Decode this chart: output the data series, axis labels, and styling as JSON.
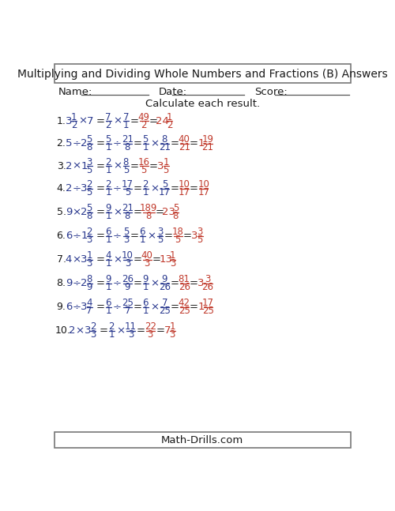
{
  "title": "Multiplying and Dividing Whole Numbers and Fractions (B) Answers",
  "subtitle": "Calculate each result.",
  "name_label": "Name:",
  "date_label": "Date:",
  "score_label": "Score:",
  "footer": "Math-Drills.com",
  "bg_color": "#ffffff",
  "black_color": "#1a1a1a",
  "blue_color": "#2b3a8f",
  "red_color": "#c0392b",
  "problems": [
    {
      "num": "1.",
      "q_whole1": "3",
      "q_frac_num": "1",
      "q_frac_den": "2",
      "q_op": "×",
      "q_whole2": "7",
      "s1n": "7",
      "s1d": "2",
      "s1op": "×",
      "s1bn": "7",
      "s1bd": "1",
      "s2n": "49",
      "s2d": "2",
      "has_s2": false,
      "an_whole": "24",
      "an_num": "1",
      "an_den": "2"
    },
    {
      "num": "2.",
      "q_whole1": "5",
      "q_frac_num": "",
      "q_frac_den": "",
      "q_op": "÷",
      "q_whole2": "2",
      "q2_frac_num": "5",
      "q2_frac_den": "8",
      "s1n": "5",
      "s1d": "1",
      "s1op": "÷",
      "s1bn": "21",
      "s1bd": "8",
      "s2n": "5",
      "s2d": "1",
      "s2op": "×",
      "s2bn": "8",
      "s2bd": "21",
      "fn": "40",
      "fd": "21",
      "has_s2": true,
      "an_whole": "1",
      "an_num": "19",
      "an_den": "21"
    },
    {
      "num": "3.",
      "q_whole1": "2",
      "q_frac_num": "",
      "q_frac_den": "",
      "q_op": "×",
      "q_whole2": "1",
      "q2_frac_num": "3",
      "q2_frac_den": "5",
      "s1n": "2",
      "s1d": "1",
      "s1op": "×",
      "s1bn": "8",
      "s1bd": "5",
      "s2n": "16",
      "s2d": "5",
      "has_s2": false,
      "an_whole": "3",
      "an_num": "1",
      "an_den": "5"
    },
    {
      "num": "4.",
      "q_whole1": "2",
      "q_frac_num": "",
      "q_frac_den": "",
      "q_op": "÷",
      "q_whole2": "3",
      "q2_frac_num": "2",
      "q2_frac_den": "5",
      "s1n": "2",
      "s1d": "1",
      "s1op": "÷",
      "s1bn": "17",
      "s1bd": "5",
      "s2n": "2",
      "s2d": "1",
      "s2op": "×",
      "s2bn": "5",
      "s2bd": "17",
      "fn": "10",
      "fd": "17",
      "has_s2": true,
      "an_whole": "",
      "an_num": "10",
      "an_den": "17"
    },
    {
      "num": "5.",
      "q_whole1": "9",
      "q_frac_num": "",
      "q_frac_den": "",
      "q_op": "×",
      "q_whole2": "2",
      "q2_frac_num": "5",
      "q2_frac_den": "8",
      "s1n": "9",
      "s1d": "1",
      "s1op": "×",
      "s1bn": "21",
      "s1bd": "8",
      "s2n": "189",
      "s2d": "8",
      "has_s2": false,
      "an_whole": "23",
      "an_num": "5",
      "an_den": "8"
    },
    {
      "num": "6.",
      "q_whole1": "6",
      "q_frac_num": "",
      "q_frac_den": "",
      "q_op": "÷",
      "q_whole2": "1",
      "q2_frac_num": "2",
      "q2_frac_den": "3",
      "s1n": "6",
      "s1d": "1",
      "s1op": "÷",
      "s1bn": "5",
      "s1bd": "3",
      "s2n": "6",
      "s2d": "1",
      "s2op": "×",
      "s2bn": "3",
      "s2bd": "5",
      "fn": "18",
      "fd": "5",
      "has_s2": true,
      "an_whole": "3",
      "an_num": "3",
      "an_den": "5"
    },
    {
      "num": "7.",
      "q_whole1": "4",
      "q_frac_num": "",
      "q_frac_den": "",
      "q_op": "×",
      "q_whole2": "3",
      "q2_frac_num": "1",
      "q2_frac_den": "3",
      "s1n": "4",
      "s1d": "1",
      "s1op": "×",
      "s1bn": "10",
      "s1bd": "3",
      "s2n": "40",
      "s2d": "3",
      "has_s2": false,
      "an_whole": "13",
      "an_num": "1",
      "an_den": "3"
    },
    {
      "num": "8.",
      "q_whole1": "9",
      "q_frac_num": "",
      "q_frac_den": "",
      "q_op": "÷",
      "q_whole2": "2",
      "q2_frac_num": "8",
      "q2_frac_den": "9",
      "s1n": "9",
      "s1d": "1",
      "s1op": "÷",
      "s1bn": "26",
      "s1bd": "9",
      "s2n": "9",
      "s2d": "1",
      "s2op": "×",
      "s2bn": "9",
      "s2bd": "26",
      "fn": "81",
      "fd": "26",
      "has_s2": true,
      "an_whole": "3",
      "an_num": "3",
      "an_den": "26"
    },
    {
      "num": "9.",
      "q_whole1": "6",
      "q_frac_num": "",
      "q_frac_den": "",
      "q_op": "÷",
      "q_whole2": "3",
      "q2_frac_num": "4",
      "q2_frac_den": "7",
      "s1n": "6",
      "s1d": "1",
      "s1op": "÷",
      "s1bn": "25",
      "s1bd": "7",
      "s2n": "6",
      "s2d": "1",
      "s2op": "×",
      "s2bn": "7",
      "s2bd": "25",
      "fn": "42",
      "fd": "25",
      "has_s2": true,
      "an_whole": "1",
      "an_num": "17",
      "an_den": "25"
    },
    {
      "num": "10.",
      "q_whole1": "2",
      "q_frac_num": "",
      "q_frac_den": "",
      "q_op": "×",
      "q_whole2": "3",
      "q2_frac_num": "2",
      "q2_frac_den": "3",
      "s1n": "2",
      "s1d": "1",
      "s1op": "×",
      "s1bn": "11",
      "s1bd": "3",
      "s2n": "22",
      "s2d": "3",
      "has_s2": false,
      "an_whole": "7",
      "an_num": "1",
      "an_den": "3"
    }
  ]
}
